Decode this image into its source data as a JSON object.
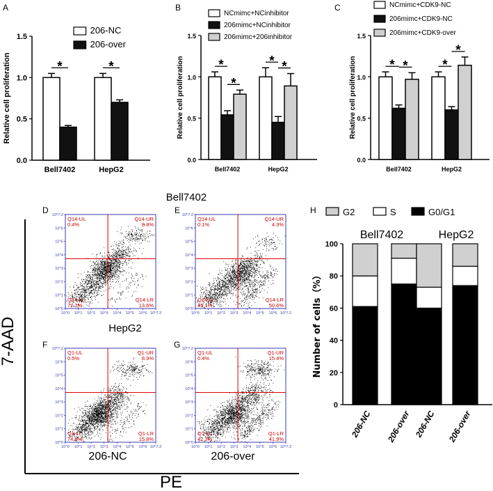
{
  "chart_data": [
    {
      "panel": "A",
      "type": "bar",
      "categories": [
        "Bell7402",
        "HepG2"
      ],
      "ylabel": "Relative cell proliferation",
      "ylim": [
        0,
        1.5
      ],
      "yticks": [
        "0.0",
        "0.5",
        "1.0",
        "1.5"
      ],
      "series": [
        {
          "name": "206-NC",
          "values": [
            1.0,
            1.0
          ],
          "errors": [
            0.05,
            0.05
          ],
          "color": "#ffffff"
        },
        {
          "name": "206-over",
          "values": [
            0.4,
            0.7
          ],
          "errors": [
            0.02,
            0.03
          ],
          "color": "#111111"
        }
      ],
      "annotations": [
        "*",
        "*"
      ]
    },
    {
      "panel": "B",
      "type": "bar",
      "categories": [
        "Bell7402",
        "HepG2"
      ],
      "ylabel": "Relative cell proliferation",
      "ylim": [
        0,
        1.5
      ],
      "yticks": [
        "0.0",
        "0.5",
        "1.0",
        "1.5"
      ],
      "series": [
        {
          "name": "NCmimc+NCinhibitor",
          "values": [
            1.0,
            1.0
          ],
          "errors": [
            0.06,
            0.11
          ],
          "color": "#ffffff"
        },
        {
          "name": "206mimc+NCinhibitor",
          "values": [
            0.54,
            0.45
          ],
          "errors": [
            0.05,
            0.07
          ],
          "color": "#111111"
        },
        {
          "name": "206mimc+206inhibitor",
          "values": [
            0.79,
            0.89
          ],
          "errors": [
            0.05,
            0.15
          ],
          "color": "#d0d0d0"
        }
      ],
      "annotations": [
        "*",
        "*",
        "*",
        "*"
      ]
    },
    {
      "panel": "C",
      "type": "bar",
      "categories": [
        "Bell7402",
        "HepG2"
      ],
      "ylabel": "Relative cell proliferation",
      "ylim": [
        0,
        1.5
      ],
      "yticks": [
        "0.0",
        "0.5",
        "1.0",
        "1.5"
      ],
      "series": [
        {
          "name": "NCmimc+CDK9-NC",
          "values": [
            1.0,
            1.0
          ],
          "errors": [
            0.06,
            0.06
          ],
          "color": "#ffffff"
        },
        {
          "name": "206mimc+CDK9-NC",
          "values": [
            0.62,
            0.6
          ],
          "errors": [
            0.04,
            0.04
          ],
          "color": "#111111"
        },
        {
          "name": "206mimc+CDK9-over",
          "values": [
            0.97,
            1.14
          ],
          "errors": [
            0.08,
            0.1
          ],
          "color": "#d0d0d0"
        }
      ],
      "annotations": [
        "*",
        "*",
        "*",
        "*"
      ]
    },
    {
      "panel": "H",
      "type": "bar",
      "stacked": true,
      "categories": [
        "206-NC",
        "206-over",
        "206-NC",
        "206-over"
      ],
      "groups": [
        "Bell7402",
        "HepG2"
      ],
      "ylabel": "Number of cells（%）",
      "ylim": [
        0,
        100
      ],
      "yticks": [
        "0",
        "20",
        "40",
        "60",
        "80",
        "100"
      ],
      "series": [
        {
          "name": "G0/G1",
          "values": [
            61,
            75,
            60,
            74
          ],
          "color": "#000000"
        },
        {
          "name": "S",
          "values": [
            19,
            16,
            13,
            12
          ],
          "color": "#ffffff"
        },
        {
          "name": "G2",
          "values": [
            20,
            9,
            27,
            14
          ],
          "color": "#d0d0d0"
        }
      ],
      "legend_order": [
        "G2",
        "S",
        "G0/G1"
      ]
    }
  ],
  "flow": {
    "panels": [
      {
        "letter": "D",
        "ul": "Q14-UL",
        "ul_val": "0.4%",
        "ur": "Q14-UR",
        "ur_val": "8.8%",
        "ll": "Q14-LL",
        "ll_val": "77.2%",
        "lr": "Q14-LR",
        "lr_val": "13.6%"
      },
      {
        "letter": "E",
        "ul": "Q14-UL",
        "ul_val": "0.1%",
        "ur": "Q14-UR",
        "ur_val": "4.3%",
        "ll": "Q14-LL",
        "ll_val": "45.1%",
        "lr": "Q14-LR",
        "lr_val": "50.6%"
      },
      {
        "letter": "F",
        "ul": "Q1-UL",
        "ul_val": "0.5%",
        "ur": "Q1-UR",
        "ur_val": "8.9%",
        "ll": "Q1-LL",
        "ll_val": "74.8%",
        "lr": "Q1-LR",
        "lr_val": "15.8%"
      },
      {
        "letter": "G",
        "ul": "Q1-UL",
        "ul_val": "0.4%",
        "ur": "Q1-UR",
        "ur_val": "15.4%",
        "ll": "Q1-LL",
        "ll_val": "42.3%",
        "lr": "Q1-LR",
        "lr_val": "41.9%"
      }
    ],
    "axis_ticks": [
      "10^0",
      "10^1",
      "10^2",
      "10^3",
      "10^4",
      "10^5",
      "10^6",
      "10^7.2"
    ],
    "bell_label": "Bell7402",
    "hep_label": "HepG2",
    "x_axis_label": "PE",
    "y_axis_label": "7-AAD",
    "col_labels": [
      "206-NC",
      "206-over"
    ]
  },
  "colors": {
    "flow_axis": "#3a3ab0",
    "quad_line": "#dd0000",
    "quad_text": "#cc0000"
  }
}
